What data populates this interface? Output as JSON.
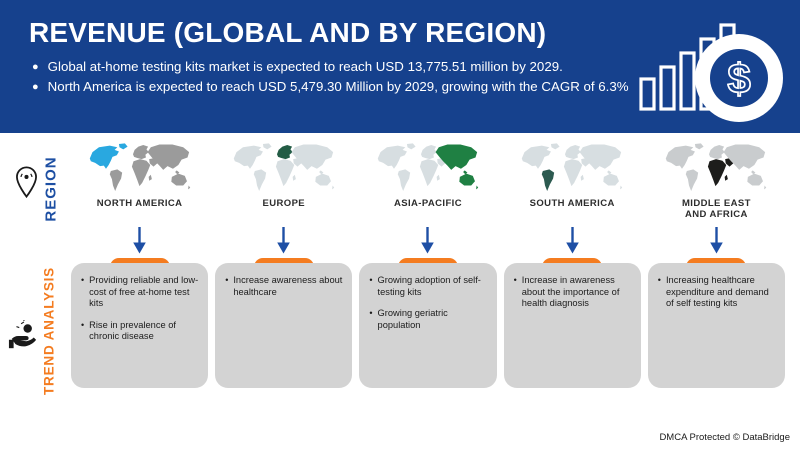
{
  "header": {
    "title": "REVENUE (GLOBAL AND BY REGION)",
    "bullets": [
      "Global at-home testing kits market is expected to reach USD 13,775.51 million by 2029.",
      "North America is expected to reach USD 5,479.30 Million by 2029, growing with the CAGR of 6.3%"
    ],
    "icon": "bar-chart-dollar-icon"
  },
  "region_section": {
    "label": "REGION",
    "icon": "location-pin-icon"
  },
  "trend_section": {
    "label": "TREND ANALYSIS",
    "icon": "hand-coin-icon"
  },
  "columns": [
    {
      "region": "NORTH AMERICA",
      "map": {
        "base": "#9b9b9b",
        "highlight": "#29a8e0",
        "highlight_regions": [
          "north-america",
          "greenland"
        ]
      },
      "trends": [
        "Providing reliable and low-cost of free at-home test kits",
        "Rise in prevalence of chronic disease"
      ]
    },
    {
      "region": "EUROPE",
      "map": {
        "base": "#d7dee1",
        "highlight": "#235c45",
        "highlight_regions": [
          "europe"
        ]
      },
      "trends": [
        "Increase awareness about healthcare"
      ]
    },
    {
      "region": "ASIA-PACIFIC",
      "map": {
        "base": "#d7dee1",
        "highlight": "#1f8043",
        "highlight_regions": [
          "asia",
          "australia"
        ]
      },
      "trends": [
        "Growing adoption of self-testing kits",
        "Growing geriatric population"
      ]
    },
    {
      "region": "SOUTH AMERICA",
      "map": {
        "base": "#d7dee1",
        "highlight": "#2c5a50",
        "highlight_regions": [
          "south-america"
        ]
      },
      "trends": [
        "Increase in awareness about the importance of health diagnosis"
      ]
    },
    {
      "region": "MIDDLE EAST AND AFRICA",
      "map": {
        "base": "#c9ccce",
        "highlight": "#1d1d1b",
        "highlight_regions": [
          "africa",
          "middle-east"
        ]
      },
      "trends": [
        "Increasing healthcare expenditure and demand of self testing kits"
      ]
    }
  ],
  "footer": {
    "text": "DMCA Protected © DataBridge"
  },
  "colors": {
    "header_bg": "#16418d",
    "accent_orange": "#f47c20",
    "arrow_blue": "#1e4fa5",
    "region_label_blue": "#1d4fa3",
    "card_bg": "#d3d3d3"
  }
}
